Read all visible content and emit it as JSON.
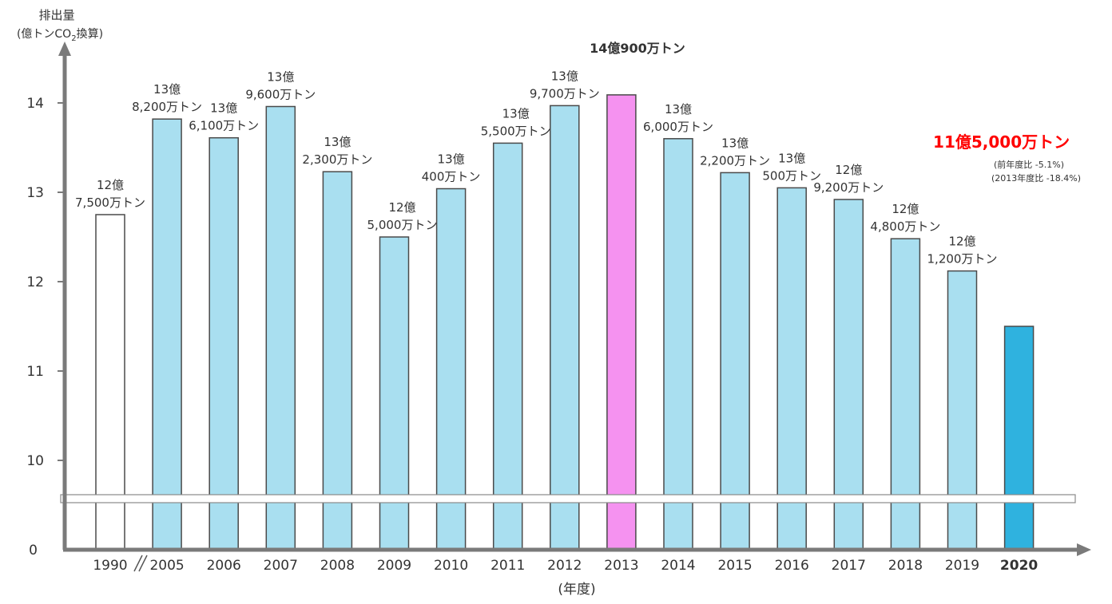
{
  "chart_data": {
    "type": "bar",
    "ylabel_line1": "排出量",
    "ylabel_line2_prefix": "(億トンCO",
    "ylabel_line2_sub": "2",
    "ylabel_line2_suffix": "換算)",
    "xlabel": "(年度)",
    "y_ticks": [
      "14",
      "13",
      "12",
      "11",
      "10",
      "0"
    ],
    "y_axis_break": "10 → 0",
    "ylim": [
      9.5,
      14.5
    ],
    "categories": [
      "1990",
      "2005",
      "2006",
      "2007",
      "2008",
      "2009",
      "2010",
      "2011",
      "2012",
      "2013",
      "2014",
      "2015",
      "2016",
      "2017",
      "2018",
      "2019",
      "2020"
    ],
    "values": [
      12.75,
      13.82,
      13.61,
      13.96,
      13.23,
      12.5,
      13.04,
      13.55,
      13.97,
      14.09,
      13.6,
      13.22,
      13.05,
      12.92,
      12.48,
      12.12,
      11.5
    ],
    "bar_styles": [
      "hollow",
      "normal",
      "normal",
      "normal",
      "normal",
      "normal",
      "normal",
      "normal",
      "normal",
      "highlight",
      "normal",
      "normal",
      "normal",
      "normal",
      "normal",
      "normal",
      "latest"
    ],
    "data_labels": [
      [
        "12億",
        "7,500万トン"
      ],
      [
        "13億",
        "8,200万トン"
      ],
      [
        "13億",
        "6,100万トン"
      ],
      [
        "13億",
        "9,600万トン"
      ],
      [
        "13億",
        "2,300万トン"
      ],
      [
        "12億",
        "5,000万トン"
      ],
      [
        "13億",
        "400万トン"
      ],
      [
        "13億",
        "5,500万トン"
      ],
      [
        "13億",
        "9,700万トン"
      ],
      [
        "14億900万トン"
      ],
      [
        "13億",
        "6,000万トン"
      ],
      [
        "13億",
        "2,200万トン"
      ],
      [
        "13億",
        "500万トン"
      ],
      [
        "12億",
        "9,200万トン"
      ],
      [
        "12億",
        "4,800万トン"
      ],
      [
        "12億",
        "1,200万トン"
      ],
      [
        "11億5,000万トン"
      ]
    ],
    "annotation_lines": [
      "(前年度比 -5.1%)",
      "(2013年度比 -18.4%)"
    ],
    "colors": {
      "bar_fill": "#a9dff0",
      "bar_stroke": "#4a4a4a",
      "highlight_fill": "#f592f0",
      "latest_fill": "#2fb2df",
      "hollow_fill": "#ffffff",
      "latest_text": "#ff0000",
      "annotation_text": "#27b9e8",
      "axis": "#7a7a7a"
    },
    "grid": false,
    "legend": "none"
  }
}
